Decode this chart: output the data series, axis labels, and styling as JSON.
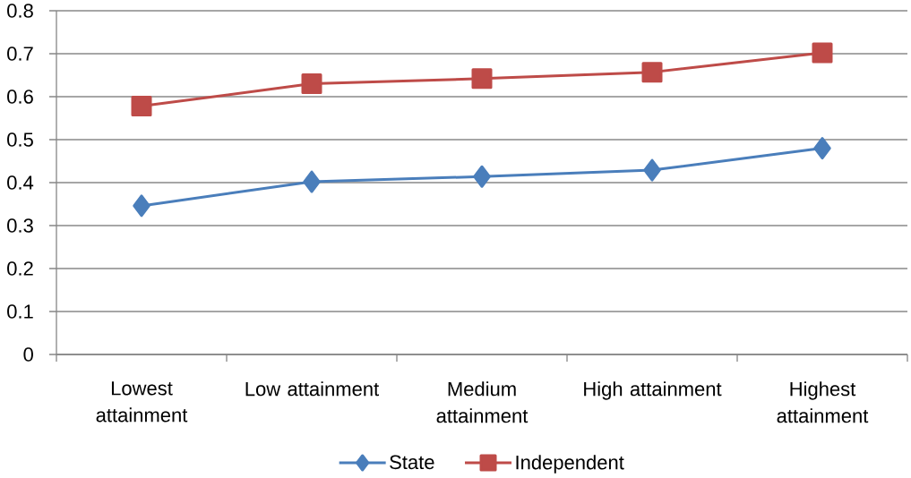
{
  "chart_data": {
    "type": "line",
    "categories": [
      "Lowest attainment",
      "Low attainment",
      "Medium attainment",
      "High attainment",
      "Highest attainment"
    ],
    "series": [
      {
        "name": "State",
        "color": "#4a7ebb",
        "marker": "diamond",
        "values": [
          0.346,
          0.402,
          0.414,
          0.429,
          0.48
        ]
      },
      {
        "name": "Independent",
        "color": "#be4b48",
        "marker": "square",
        "values": [
          0.578,
          0.63,
          0.642,
          0.657,
          0.702
        ]
      }
    ],
    "ylim": [
      0,
      0.8
    ],
    "yticks": [
      0,
      0.1,
      0.2,
      0.3,
      0.4,
      0.5,
      0.6,
      0.7,
      0.8
    ],
    "grid": "y",
    "legend": "bottom",
    "line_style": "solid"
  }
}
